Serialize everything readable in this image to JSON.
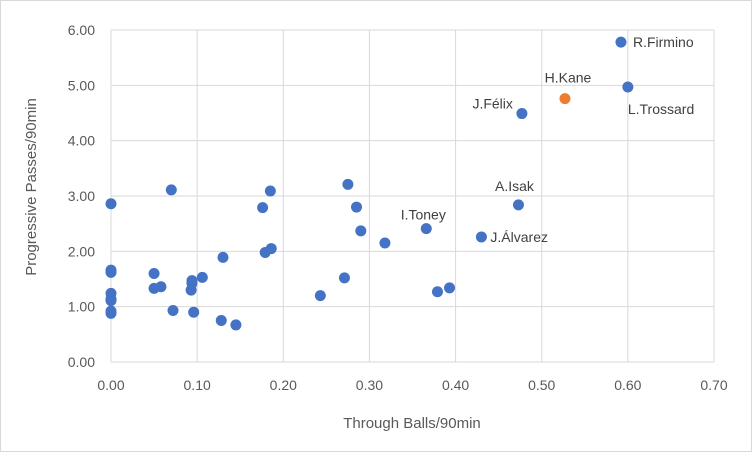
{
  "chart_data": {
    "type": "scatter",
    "xlabel": "Through Balls/90min",
    "ylabel": "Progressive Passes/90min",
    "xlim": [
      0,
      0.7
    ],
    "ylim": [
      0,
      6
    ],
    "x_ticks": [
      "0.00",
      "0.10",
      "0.20",
      "0.30",
      "0.40",
      "0.50",
      "0.60",
      "0.70"
    ],
    "y_ticks": [
      "0.00",
      "1.00",
      "2.00",
      "3.00",
      "4.00",
      "5.00",
      "6.00"
    ],
    "grid": true,
    "colors": {
      "default": "#4472c4",
      "highlight": "#ed7d31"
    },
    "points": [
      {
        "x": 0.0,
        "y": 2.86
      },
      {
        "x": 0.0,
        "y": 1.66
      },
      {
        "x": 0.0,
        "y": 1.62
      },
      {
        "x": 0.0,
        "y": 1.24
      },
      {
        "x": 0.0,
        "y": 1.14
      },
      {
        "x": 0.0,
        "y": 1.11
      },
      {
        "x": 0.0,
        "y": 0.92
      },
      {
        "x": 0.0,
        "y": 0.88
      },
      {
        "x": 0.05,
        "y": 1.6
      },
      {
        "x": 0.05,
        "y": 1.33
      },
      {
        "x": 0.058,
        "y": 1.36
      },
      {
        "x": 0.07,
        "y": 3.11
      },
      {
        "x": 0.072,
        "y": 0.93
      },
      {
        "x": 0.094,
        "y": 1.47
      },
      {
        "x": 0.094,
        "y": 1.42
      },
      {
        "x": 0.093,
        "y": 1.3
      },
      {
        "x": 0.096,
        "y": 0.9
      },
      {
        "x": 0.106,
        "y": 1.53
      },
      {
        "x": 0.128,
        "y": 0.75
      },
      {
        "x": 0.13,
        "y": 1.89
      },
      {
        "x": 0.145,
        "y": 0.67
      },
      {
        "x": 0.176,
        "y": 2.79
      },
      {
        "x": 0.179,
        "y": 1.98
      },
      {
        "x": 0.185,
        "y": 3.09
      },
      {
        "x": 0.186,
        "y": 2.05
      },
      {
        "x": 0.243,
        "y": 1.2
      },
      {
        "x": 0.271,
        "y": 1.52
      },
      {
        "x": 0.275,
        "y": 3.21
      },
      {
        "x": 0.285,
        "y": 2.8
      },
      {
        "x": 0.29,
        "y": 2.37
      },
      {
        "x": 0.318,
        "y": 2.15
      },
      {
        "x": 0.366,
        "y": 2.41,
        "label": "I.Toney"
      },
      {
        "x": 0.379,
        "y": 1.27
      },
      {
        "x": 0.393,
        "y": 1.34
      },
      {
        "x": 0.43,
        "y": 2.26,
        "label": "J.Álvarez"
      },
      {
        "x": 0.473,
        "y": 2.84,
        "label": "A.Isak"
      },
      {
        "x": 0.477,
        "y": 4.49,
        "label": "J.Félix"
      },
      {
        "x": 0.527,
        "y": 4.76,
        "label": "H.Kane",
        "highlight": true
      },
      {
        "x": 0.592,
        "y": 5.78,
        "label": "R.Firmino"
      },
      {
        "x": 0.6,
        "y": 4.97,
        "label": "L.Trossard"
      }
    ]
  }
}
